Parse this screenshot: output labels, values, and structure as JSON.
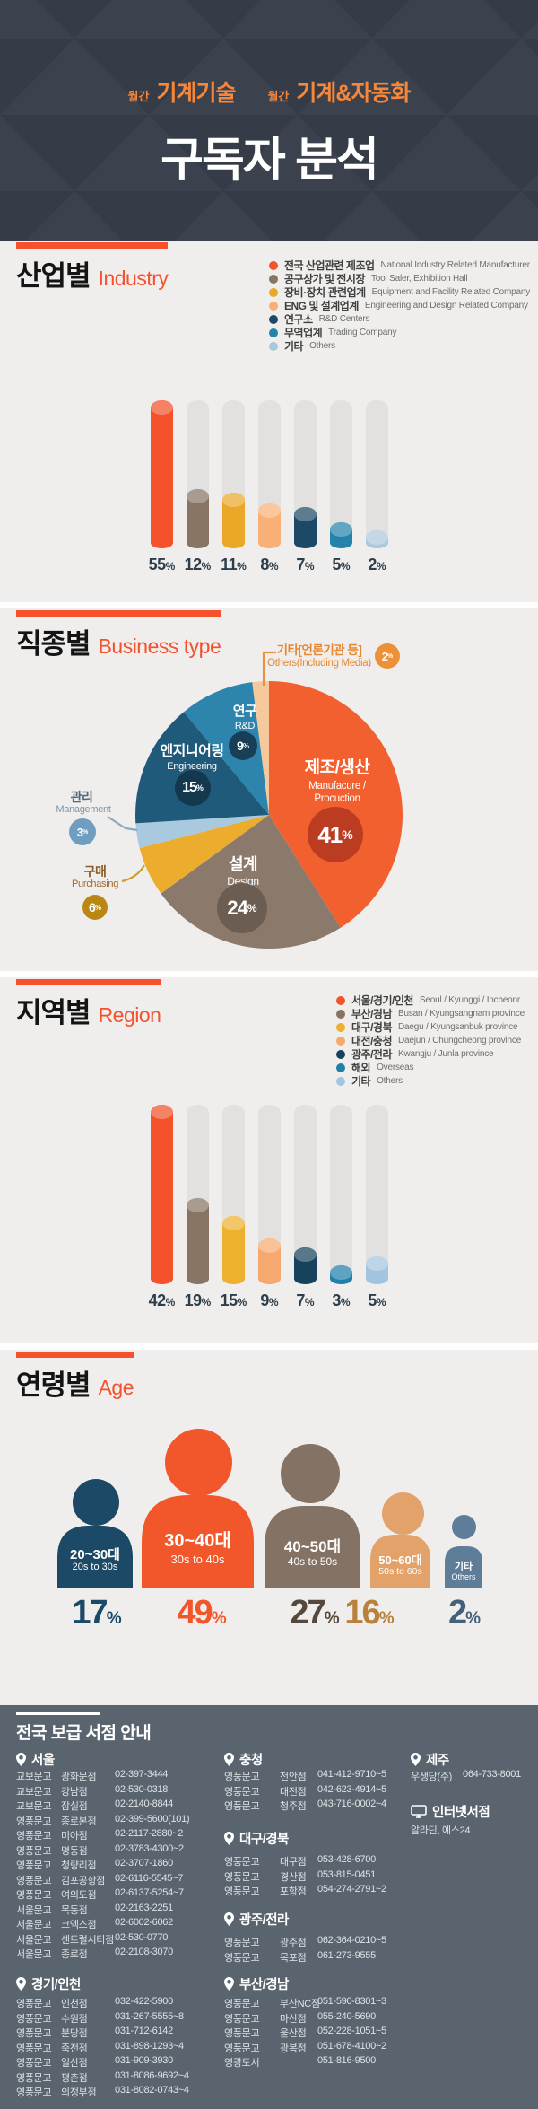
{
  "header": {
    "magazines": [
      {
        "prefix": "월간",
        "name": "기계기술"
      },
      {
        "prefix": "월간",
        "name": "기계&자동화"
      }
    ],
    "title": "구독자 분석"
  },
  "chart_data": [
    {
      "id": "industry",
      "type": "bar",
      "title": "산업별",
      "title_en": "Industry",
      "unit": "%",
      "ylim": [
        0,
        55
      ],
      "legend_position": "top-right",
      "categories": [
        "전국 산업관련 제조업",
        "공구상가 및 전시장",
        "장비·장치 관련업계",
        "ENG 및 설계업계",
        "연구소",
        "무역업계",
        "기타"
      ],
      "categories_en": [
        "National Industry Related Manufacturer",
        "Tool Saler, Exhibition Hall",
        "Equipment and Facility Related Company",
        "Engineering and Design Related Company",
        "R&D Centers",
        "Trading Company",
        "Others"
      ],
      "values": [
        55,
        12,
        11,
        8,
        7,
        5,
        2
      ],
      "colors": [
        "#f3522a",
        "#877463",
        "#eaa728",
        "#f8b077",
        "#1c4a66",
        "#2583aa",
        "#abc7dc"
      ]
    },
    {
      "id": "business",
      "type": "pie",
      "title": "직종별",
      "title_en": "Business type",
      "unit": "%",
      "start_angle": "top",
      "direction": "clockwise",
      "slices": [
        {
          "label": "제조/생산",
          "label_en": "Manufacure / Procuction",
          "value": 41,
          "color": "#f2602f",
          "badge_color": "#bc3c22"
        },
        {
          "label": "설계",
          "label_en": "Design",
          "value": 24,
          "color": "#8b7a6c",
          "badge_color": "#6c5d52"
        },
        {
          "label": "구매",
          "label_en": "Purchasing",
          "value": 6,
          "color": "#ecac2e",
          "badge_color": "#ba8812"
        },
        {
          "label": "관리",
          "label_en": "Management",
          "value": 3,
          "color": "#a9c9df",
          "badge_color": "#6f9ec0"
        },
        {
          "label": "엔지니어링",
          "label_en": "Engineering",
          "value": 15,
          "color": "#205a7a",
          "badge_color": "#14384e"
        },
        {
          "label": "연구",
          "label_en": "R&D",
          "value": 9,
          "color": "#2d85ad",
          "badge_color": "#174058"
        },
        {
          "label": "기타[언론기관 등]",
          "label_en": "Others(Including Media)",
          "value": 2,
          "color": "#f6c99c",
          "badge_color": "#ec9135"
        }
      ]
    },
    {
      "id": "region",
      "type": "bar",
      "title": "지역별",
      "title_en": "Region",
      "unit": "%",
      "ylim": [
        0,
        42
      ],
      "legend_position": "top-right",
      "categories": [
        "서울/경기/인천",
        "부산/경남",
        "대구/경북",
        "대전/충청",
        "광주/전라",
        "해외",
        "기타"
      ],
      "categories_en": [
        "Seoul / Kyunggi / Incheonr",
        "Busan / Kyungsangnam province",
        "Daegu / Kyungsanbuk province",
        "Daejun / Chungcheong province",
        "Kwangju / Junla province",
        "Overseas",
        "Others"
      ],
      "values": [
        42,
        19,
        15,
        9,
        7,
        3,
        5
      ],
      "colors": [
        "#f3522a",
        "#877463",
        "#eeb02f",
        "#f5a96e",
        "#17425c",
        "#1f81aa",
        "#a3c4de"
      ]
    },
    {
      "id": "age",
      "type": "pictogram",
      "title": "연령별",
      "title_en": "Age",
      "unit": "%",
      "groups": [
        {
          "label": "20~30대",
          "label_en": "20s to 30s",
          "value": 17,
          "color": "#1c4966",
          "pct_color": "#1c4966"
        },
        {
          "label": "30~40대",
          "label_en": "30s to 40s",
          "value": 49,
          "color": "#f2572b",
          "pct_color": "#f2572b"
        },
        {
          "label": "40~50대",
          "label_en": "40s to 50s",
          "value": 27,
          "color": "#847264",
          "pct_color": "#55483d"
        },
        {
          "label": "50~60대",
          "label_en": "50s to 60s",
          "value": 16,
          "color": "#e3a269",
          "pct_color": "#b9813e"
        },
        {
          "label": "기타",
          "label_en": "Others",
          "value": 2,
          "color": "#5e7d98",
          "pct_color": "#44607a"
        }
      ]
    }
  ],
  "footer": {
    "title": "전국 보급 서점 안내",
    "columns": [
      {
        "groups": [
          {
            "region": "서울",
            "icon": "pin",
            "stores": [
              {
                "name": "교보문고",
                "branch": "광화문점",
                "phone": "02-397-3444"
              },
              {
                "name": "교보문고",
                "branch": "강남점",
                "phone": "02-530-0318"
              },
              {
                "name": "교보문고",
                "branch": "잠실점",
                "phone": "02-2140-8844"
              },
              {
                "name": "영풍문고",
                "branch": "종로본점",
                "phone": "02-399-5600(101)"
              },
              {
                "name": "영풍문고",
                "branch": "미아점",
                "phone": "02-2117-2880~2"
              },
              {
                "name": "영풍문고",
                "branch": "명동점",
                "phone": "02-3783-4300~2"
              },
              {
                "name": "영풍문고",
                "branch": "청량리점",
                "phone": "02-3707-1860"
              },
              {
                "name": "영풍문고",
                "branch": "김포공항점",
                "phone": "02-6116-5545~7"
              },
              {
                "name": "영풍문고",
                "branch": "여의도점",
                "phone": "02-6137-5254~7"
              },
              {
                "name": "서울문고",
                "branch": "목동점",
                "phone": "02-2163-2251"
              },
              {
                "name": "서울문고",
                "branch": "코엑스점",
                "phone": "02-6002-6062"
              },
              {
                "name": "서울문고",
                "branch": "센트럴시티점",
                "phone": "02-530-0770"
              },
              {
                "name": "서울문고",
                "branch": "종로점",
                "phone": "02-2108-3070"
              }
            ]
          },
          {
            "region": "경기/인천",
            "icon": "pin",
            "stores": [
              {
                "name": "영풍문고",
                "branch": "인천점",
                "phone": "032-422-5900"
              },
              {
                "name": "영풍문고",
                "branch": "수원점",
                "phone": "031-267-5555~8"
              },
              {
                "name": "영풍문고",
                "branch": "분당점",
                "phone": "031-712-6142"
              },
              {
                "name": "영풍문고",
                "branch": "죽전점",
                "phone": "031-898-1293~4"
              },
              {
                "name": "영풍문고",
                "branch": "일산점",
                "phone": "031-909-3930"
              },
              {
                "name": "영풍문고",
                "branch": "평촌점",
                "phone": "031-8086-9692~4"
              },
              {
                "name": "영풍문고",
                "branch": "의정부점",
                "phone": "031-8082-0743~4"
              }
            ]
          }
        ]
      },
      {
        "groups": [
          {
            "region": "충청",
            "icon": "pin",
            "stores": [
              {
                "name": "영풍문고",
                "branch": "천안점",
                "phone": "041-412-9710~5"
              },
              {
                "name": "영풍문고",
                "branch": "대전점",
                "phone": "042-623-4914~5"
              },
              {
                "name": "영풍문고",
                "branch": "청주점",
                "phone": "043-716-0002~4"
              }
            ]
          },
          {
            "region": "대구/경북",
            "icon": "pin",
            "stores": [
              {
                "name": "영풍문고",
                "branch": "대구점",
                "phone": "053-428-6700"
              },
              {
                "name": "영풍문고",
                "branch": "경산점",
                "phone": "053-815-0451"
              },
              {
                "name": "영풍문고",
                "branch": "포항점",
                "phone": "054-274-2791~2"
              }
            ]
          },
          {
            "region": "광주/전라",
            "icon": "pin",
            "stores": [
              {
                "name": "영풍문고",
                "branch": "광주점",
                "phone": "062-364-0210~5"
              },
              {
                "name": "영풍문고",
                "branch": "목포점",
                "phone": "061-273-9555"
              }
            ]
          },
          {
            "region": "부산/경남",
            "icon": "pin",
            "stores": [
              {
                "name": "영풍문고",
                "branch": "부산NC점",
                "phone": "051-590-8301~3"
              },
              {
                "name": "영풍문고",
                "branch": "마산점",
                "phone": "055-240-5690"
              },
              {
                "name": "영풍문고",
                "branch": "울산점",
                "phone": "052-228-1051~5"
              },
              {
                "name": "영풍문고",
                "branch": "광복점",
                "phone": "051-678-4100~2"
              },
              {
                "name": "영광도서",
                "branch": "",
                "phone": "051-816-9500"
              }
            ]
          }
        ]
      },
      {
        "groups": [
          {
            "region": "제주",
            "icon": "pin",
            "stores": [
              {
                "name": "우생당(주)",
                "branch": "",
                "phone": "064-733-8001"
              }
            ]
          },
          {
            "region": "인터넷서점",
            "icon": "monitor",
            "stores": [
              {
                "name": "알라딘, 예스24",
                "branch": "",
                "phone": ""
              }
            ]
          }
        ]
      }
    ]
  }
}
